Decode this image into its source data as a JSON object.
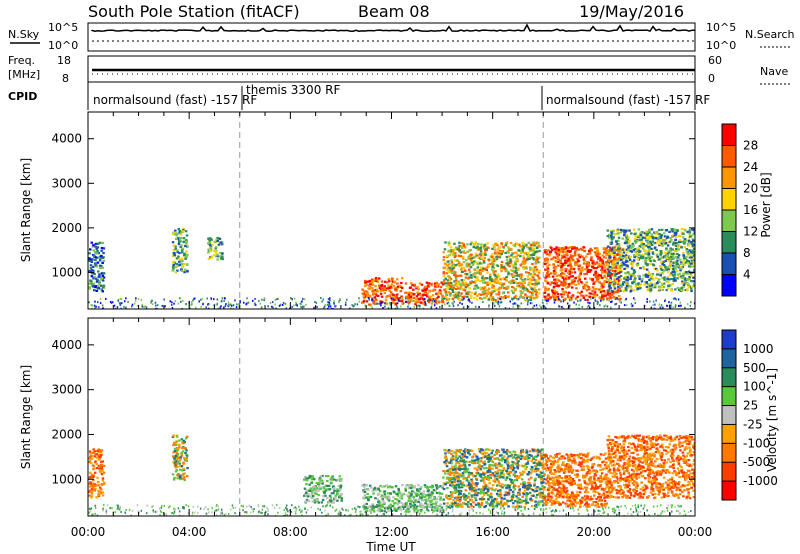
{
  "header": {
    "title": "South Pole Station (fitACF)",
    "beam": "Beam 08",
    "date": "19/May/2016"
  },
  "strips": {
    "nsky_label": "N.Sky",
    "nsearch_label": "N.Search",
    "nsky_ticks": [
      "10^5",
      "10^0"
    ],
    "nsearch_ticks": [
      "10^5",
      "10^0"
    ],
    "freq_label_1": "Freq.",
    "freq_label_2": "[MHz]",
    "freq_ticks": [
      "18",
      "8"
    ],
    "nave_ticks": [
      "60",
      "0"
    ],
    "nave_label": "Nave",
    "cpid_label": "CPID",
    "cpid_segments": [
      {
        "label": "normalsound (fast) -157 RF"
      },
      {
        "label": "themis 3300 RF"
      },
      {
        "label": "normalsound (fast) -157 RF"
      }
    ]
  },
  "axes": {
    "ylabel": "Slant Range [km]",
    "xlabel": "Time UT",
    "yticks": [
      "1000",
      "2000",
      "3000",
      "4000"
    ],
    "xticks": [
      "00:00",
      "04:00",
      "08:00",
      "12:00",
      "16:00",
      "20:00",
      "00:00"
    ]
  },
  "power_scale": {
    "label": "Power [dB]",
    "ticks": [
      "28",
      "24",
      "20",
      "16",
      "12",
      "8",
      "4"
    ],
    "colors": [
      "#ff0000",
      "#ff5a00",
      "#ff9600",
      "#ffd200",
      "#7ec850",
      "#2a8c5a",
      "#1a50b4",
      "#0000ff"
    ]
  },
  "velocity_scale": {
    "label": "Velocity [m s^-1]",
    "ticks": [
      "1000",
      "500",
      "100",
      "25",
      "-25",
      "-100",
      "-500",
      "-1000"
    ],
    "colors": [
      "#1e3cc8",
      "#1e64a0",
      "#2a8c5a",
      "#5ac83c",
      "#c0c0c0",
      "#ffa000",
      "#ff7800",
      "#ff3c00",
      "#ff0000"
    ]
  },
  "chart_data": [
    {
      "type": "heatmap",
      "title": "South Pole Station (fitACF)",
      "xlabel": "Time UT",
      "ylabel": "Slant Range [km]",
      "colorbar_label": "Power [dB]",
      "xlim": [
        0,
        24
      ],
      "ylim": [
        180,
        4600
      ],
      "x_units": "hours UT",
      "dashed_markers_x": [
        6,
        18
      ],
      "echo_regions": [
        {
          "t": [
            0.0,
            0.6
          ],
          "r": [
            600,
            1700
          ],
          "level": "medium-low"
        },
        {
          "t": [
            3.3,
            3.9
          ],
          "r": [
            1000,
            2000
          ],
          "level": "medium"
        },
        {
          "t": [
            4.7,
            5.3
          ],
          "r": [
            1300,
            1800
          ],
          "level": "medium"
        },
        {
          "t": [
            10.8,
            12.4
          ],
          "r": [
            300,
            900
          ],
          "level": "high"
        },
        {
          "t": [
            12.5,
            14.0
          ],
          "r": [
            300,
            800
          ],
          "level": "high"
        },
        {
          "t": [
            14.0,
            17.8
          ],
          "r": [
            400,
            1700
          ],
          "level": "medium-high"
        },
        {
          "t": [
            18.0,
            21.0
          ],
          "r": [
            400,
            1600
          ],
          "level": "high"
        },
        {
          "t": [
            20.5,
            24.0
          ],
          "r": [
            600,
            2000
          ],
          "level": "medium"
        }
      ]
    },
    {
      "type": "heatmap",
      "xlabel": "Time UT",
      "ylabel": "Slant Range [km]",
      "colorbar_label": "Velocity [m s^-1]",
      "xlim": [
        0,
        24
      ],
      "ylim": [
        180,
        4600
      ],
      "x_units": "hours UT",
      "dashed_markers_x": [
        6,
        18
      ],
      "echo_regions": [
        {
          "t": [
            0.0,
            0.6
          ],
          "r": [
            600,
            1700
          ],
          "velocity": "negative"
        },
        {
          "t": [
            3.3,
            3.9
          ],
          "r": [
            1000,
            2000
          ],
          "velocity": "mixed"
        },
        {
          "t": [
            8.5,
            10.0
          ],
          "r": [
            500,
            1100
          ],
          "velocity": "near zero"
        },
        {
          "t": [
            10.8,
            14.0
          ],
          "r": [
            300,
            900
          ],
          "velocity": "near zero"
        },
        {
          "t": [
            14.0,
            18.0
          ],
          "r": [
            400,
            1700
          ],
          "velocity": "mixed"
        },
        {
          "t": [
            18.0,
            20.5
          ],
          "r": [
            400,
            1600
          ],
          "velocity": "negative"
        },
        {
          "t": [
            20.5,
            24.0
          ],
          "r": [
            600,
            2000
          ],
          "velocity": "negative"
        }
      ]
    }
  ]
}
